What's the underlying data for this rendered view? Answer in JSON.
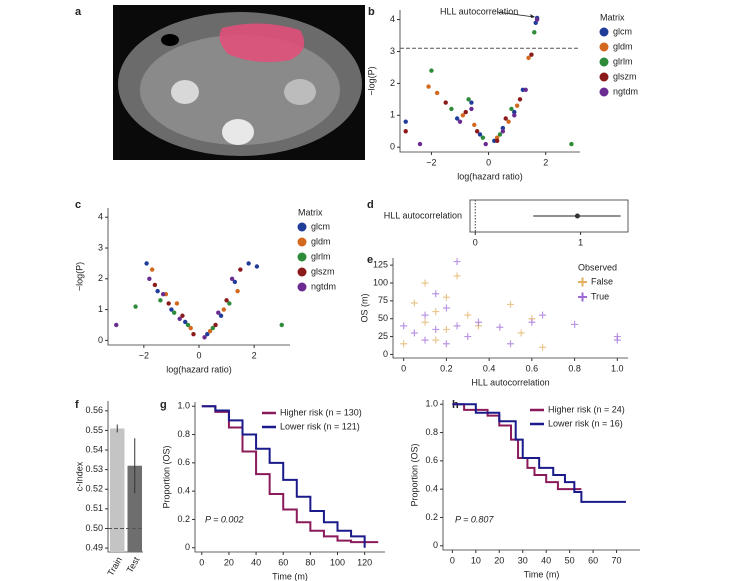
{
  "chart_data": [
    {
      "type": "image",
      "panel": "a"
    },
    {
      "type": "scatter",
      "panel": "b",
      "xlabel": "log(hazard ratio)",
      "ylabel": "−log(P)",
      "xlim": [
        -3.1,
        3.2
      ],
      "ylim": [
        -0.15,
        4.3
      ],
      "xticks": [
        {
          "value": -2,
          "label": "−2"
        },
        0,
        2
      ],
      "yticks": [
        0,
        1,
        2,
        3,
        4
      ],
      "hline": 3.1,
      "annotation": "HLL autocorrelation",
      "legend_title": "Matrix",
      "series": [
        {
          "name": "glcm",
          "color": "#1f3c99",
          "x": [
            -2.9,
            -1.1,
            -0.6,
            -0.3,
            0.2,
            0.5,
            0.9,
            1.2,
            1.65,
            1.7
          ],
          "values": [
            0.8,
            0.9,
            1.4,
            0.4,
            0.2,
            0.6,
            1.1,
            1.8,
            3.9,
            4.05
          ]
        },
        {
          "name": "gldm",
          "color": "#d2691e",
          "x": [
            -2.1,
            -1.8,
            -0.9,
            -0.5,
            0.3,
            0.7,
            1.0,
            1.4
          ],
          "values": [
            1.9,
            1.7,
            1.0,
            0.7,
            0.3,
            0.8,
            1.3,
            2.8
          ]
        },
        {
          "name": "glrlm",
          "color": "#2e8b3a",
          "x": [
            -2.0,
            -1.3,
            -0.7,
            -0.2,
            0.4,
            0.8,
            1.6,
            2.9
          ],
          "values": [
            2.4,
            1.2,
            1.5,
            0.3,
            0.4,
            1.2,
            3.6,
            0.1
          ]
        },
        {
          "name": "glszm",
          "color": "#8b1a1a",
          "x": [
            -2.9,
            -1.5,
            -0.8,
            -0.4,
            0.3,
            0.6,
            1.1,
            1.5
          ],
          "values": [
            0.5,
            1.4,
            1.1,
            0.5,
            0.2,
            0.9,
            1.5,
            2.9
          ]
        },
        {
          "name": "ngtdm",
          "color": "#6a2c91",
          "x": [
            -2.4,
            -1.0,
            -0.6,
            -0.1,
            0.5,
            0.9,
            1.3,
            1.7
          ],
          "values": [
            0.1,
            0.8,
            1.2,
            0.1,
            0.5,
            1.0,
            1.8,
            4.0
          ]
        }
      ]
    },
    {
      "type": "scatter",
      "panel": "c",
      "xlabel": "log(hazard ratio)",
      "ylabel": "−log(P)",
      "xlim": [
        -3.3,
        3.3
      ],
      "ylim": [
        -0.15,
        4.3
      ],
      "xticks": [
        {
          "value": -2,
          "label": "−2"
        },
        0,
        2
      ],
      "yticks": [
        0,
        1,
        2,
        3,
        4
      ],
      "legend_title": "Matrix",
      "series": [
        {
          "name": "glcm",
          "color": "#1f3c99",
          "x": [
            -1.9,
            -1.5,
            -1.0,
            -0.5,
            0.3,
            0.8,
            1.3,
            1.8,
            2.1
          ],
          "values": [
            2.5,
            1.6,
            1.0,
            0.6,
            0.2,
            0.8,
            1.9,
            2.5,
            2.4
          ]
        },
        {
          "name": "gldm",
          "color": "#d2691e",
          "x": [
            -1.7,
            -1.2,
            -0.8,
            -0.3,
            0.4,
            0.9,
            1.4
          ],
          "values": [
            2.3,
            1.5,
            1.2,
            0.4,
            0.3,
            1.0,
            1.6
          ]
        },
        {
          "name": "glrlm",
          "color": "#2e8b3a",
          "x": [
            -2.3,
            -1.4,
            -0.9,
            -0.4,
            0.5,
            1.1,
            3.0
          ],
          "values": [
            1.1,
            1.3,
            0.9,
            0.5,
            0.4,
            1.2,
            0.5
          ]
        },
        {
          "name": "glszm",
          "color": "#8b1a1a",
          "x": [
            -1.6,
            -1.1,
            -0.6,
            -0.2,
            0.6,
            1.0,
            1.5
          ],
          "values": [
            1.8,
            1.2,
            0.8,
            0.2,
            0.5,
            1.3,
            2.3
          ]
        },
        {
          "name": "ngtdm",
          "color": "#6a2c91",
          "x": [
            -3.0,
            -1.8,
            -1.3,
            -0.7,
            0.2,
            0.7,
            1.2
          ],
          "values": [
            0.5,
            2.0,
            1.5,
            0.7,
            0.1,
            0.9,
            2.0
          ]
        }
      ]
    },
    {
      "type": "forest",
      "panel": "d",
      "label": "HLL autocorrelation",
      "value": 0.97,
      "ci": [
        0.55,
        1.38
      ],
      "ref_line": 0,
      "xlim": [
        -0.05,
        1.45
      ],
      "xticks": [
        0,
        1
      ]
    },
    {
      "type": "scatter",
      "panel": "e",
      "marker": "plus",
      "xlabel": "HLL autocorrelation",
      "ylabel": "OS (m)",
      "xlim": [
        -0.05,
        1.05
      ],
      "ylim": [
        -5,
        135
      ],
      "xticks": [
        0,
        0.2,
        0.4,
        0.6,
        0.8,
        {
          "value": 1,
          "label": "1.0"
        }
      ],
      "yticks": [
        0,
        25,
        50,
        75,
        100,
        125
      ],
      "legend_title": "Observed",
      "series": [
        {
          "name": "False",
          "color": "#e0b060",
          "x": [
            0,
            0.05,
            0.1,
            0.1,
            0.15,
            0.15,
            0.2,
            0.2,
            0.25,
            0.3,
            0.35,
            0.5,
            0.55,
            0.6,
            0.65
          ],
          "values": [
            15,
            72,
            45,
            100,
            60,
            20,
            80,
            35,
            110,
            55,
            40,
            70,
            30,
            50,
            10
          ]
        },
        {
          "name": "True",
          "color": "#9e6ad8",
          "x": [
            0,
            0.05,
            0.1,
            0.1,
            0.15,
            0.15,
            0.2,
            0.2,
            0.25,
            0.25,
            0.3,
            0.35,
            0.45,
            0.5,
            0.6,
            0.65,
            0.8,
            1.0,
            1.0
          ],
          "values": [
            40,
            30,
            55,
            20,
            85,
            35,
            65,
            15,
            40,
            130,
            25,
            45,
            38,
            15,
            45,
            55,
            42,
            25,
            20
          ]
        }
      ]
    },
    {
      "type": "bar",
      "panel": "f",
      "ylabel": "c-Index",
      "categories": [
        "Train",
        "Test"
      ],
      "values": [
        0.551,
        0.532
      ],
      "errors": [
        0.002,
        0.014
      ],
      "colors": [
        "#c4c4c4",
        "#6e6e6e"
      ],
      "ylim": [
        0.488,
        0.565
      ],
      "hline": 0.5,
      "yticks": [
        0.49,
        {
          "value": 0.5,
          "label": "0.50"
        },
        0.51,
        0.52,
        0.53,
        0.54,
        0.55,
        0.56
      ]
    },
    {
      "type": "step",
      "panel": "g",
      "xlabel": "Time (m)",
      "ylabel": "Proportion (OS)",
      "annotation": "P = 0.002",
      "xlim": [
        -5,
        135
      ],
      "ylim": [
        -0.03,
        1.03
      ],
      "xticks": [
        0,
        20,
        40,
        60,
        80,
        100,
        120
      ],
      "yticks": [
        0,
        0.2,
        0.4,
        0.6,
        0.8,
        {
          "value": 1,
          "label": "1.0"
        }
      ],
      "series": [
        {
          "name": "Higher risk (n = 130)",
          "color": "#8b1a5a",
          "x": [
            0,
            10,
            20,
            30,
            40,
            50,
            60,
            70,
            80,
            90,
            100,
            110,
            120,
            130
          ],
          "values": [
            1,
            0.96,
            0.85,
            0.68,
            0.52,
            0.38,
            0.27,
            0.18,
            0.12,
            0.08,
            0.05,
            0.04,
            0.04,
            0.04
          ]
        },
        {
          "name": "Lower risk (n = 121)",
          "color": "#1a1a8b",
          "x": [
            0,
            10,
            20,
            30,
            40,
            50,
            60,
            70,
            80,
            90,
            100,
            110,
            115,
            120
          ],
          "values": [
            1,
            0.97,
            0.9,
            0.8,
            0.7,
            0.6,
            0.48,
            0.36,
            0.26,
            0.18,
            0.12,
            0.08,
            0.08,
            0
          ]
        }
      ]
    },
    {
      "type": "step",
      "panel": "h",
      "xlabel": "Time (m)",
      "ylabel": "Proportion (OS)",
      "annotation": "P = 0.807",
      "xlim": [
        -4,
        80
      ],
      "ylim": [
        -0.03,
        1.03
      ],
      "xticks": [
        0,
        10,
        20,
        30,
        40,
        50,
        60,
        70
      ],
      "yticks": [
        0,
        0.2,
        0.4,
        0.6,
        0.8,
        {
          "value": 1,
          "label": "1.0"
        }
      ],
      "series": [
        {
          "name": "Higher risk (n = 24)",
          "color": "#8b1a5a",
          "x": [
            0,
            5,
            15,
            20,
            25,
            28,
            32,
            35,
            40,
            45,
            50,
            55
          ],
          "values": [
            1,
            0.96,
            0.92,
            0.85,
            0.75,
            0.62,
            0.55,
            0.5,
            0.45,
            0.4,
            0.4,
            0.4
          ]
        },
        {
          "name": "Lower risk (n = 16)",
          "color": "#1a1a8b",
          "x": [
            0,
            10,
            20,
            27,
            30,
            37,
            43,
            48,
            52,
            55,
            74
          ],
          "values": [
            1,
            0.94,
            0.88,
            0.75,
            0.62,
            0.55,
            0.5,
            0.45,
            0.38,
            0.31,
            0.31
          ]
        }
      ]
    }
  ]
}
